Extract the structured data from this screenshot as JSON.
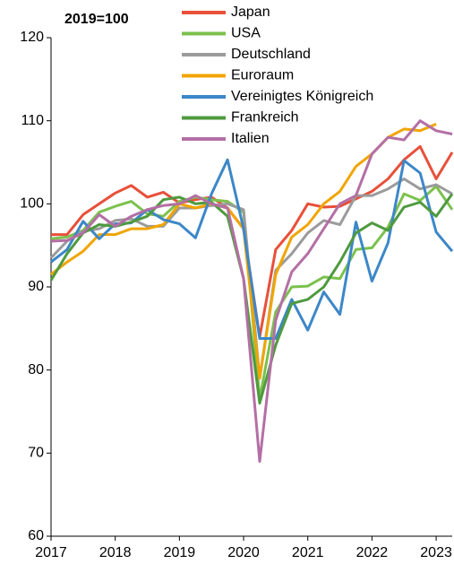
{
  "chart_data": {
    "type": "line",
    "annotation": "2019=100",
    "x": [
      2017,
      2017.25,
      2017.5,
      2017.75,
      2018,
      2018.25,
      2018.5,
      2018.75,
      2019,
      2019.25,
      2019.5,
      2019.75,
      2020,
      2020.25,
      2020.5,
      2020.75,
      2021,
      2021.25,
      2021.5,
      2021.75,
      2022,
      2022.25,
      2022.5,
      2022.75,
      2023,
      2023.25
    ],
    "xlim": [
      2017,
      2023.25
    ],
    "xticks": [
      2017,
      2018,
      2019,
      2020,
      2021,
      2022,
      2023
    ],
    "ylim": [
      60,
      120
    ],
    "yticks": [
      60,
      70,
      80,
      90,
      100,
      110,
      120
    ],
    "series": [
      {
        "name": "Japan",
        "color": "#e8503a",
        "values": [
          96.3,
          96.3,
          98.7,
          100,
          101.3,
          102.2,
          100.8,
          101.4,
          100.1,
          100.5,
          100.8,
          99.5,
          97,
          84,
          94.5,
          96.8,
          100,
          99.6,
          99.7,
          100.6,
          101.5,
          103,
          105.3,
          106.9,
          103,
          106.2
        ]
      },
      {
        "name": "USA",
        "color": "#7bc14d",
        "values": [
          95.8,
          96,
          96.8,
          99,
          99.7,
          100.3,
          98.8,
          98.5,
          100.3,
          100.8,
          100.5,
          100.3,
          99,
          76.5,
          87,
          90,
          90.1,
          91.2,
          91,
          94.5,
          94.7,
          97.2,
          101.2,
          100.4,
          102.1,
          99.3
        ]
      },
      {
        "name": "Deutschland",
        "color": "#9b9b9b",
        "values": [
          93.5,
          95.5,
          96.7,
          97,
          98,
          98.2,
          97.3,
          97.3,
          99.5,
          99.5,
          99.8,
          100,
          99.3,
          79,
          92,
          94,
          96.5,
          98,
          97.5,
          101,
          101,
          101.8,
          103,
          101.8,
          102.3,
          101.2
        ]
      },
      {
        "name": "Euroraum",
        "color": "#f0a500",
        "values": [
          91.5,
          93,
          94.3,
          96.3,
          96.3,
          97,
          97,
          97.5,
          100,
          99.5,
          100,
          99.5,
          97,
          79,
          91.5,
          96,
          97.5,
          100,
          101.5,
          104.5,
          106,
          108,
          109,
          108.8,
          109.6,
          null
        ]
      },
      {
        "name": "Vereinigtes Königreich",
        "color": "#3c87c8",
        "values": [
          93,
          94.5,
          97.9,
          95.8,
          97.6,
          97.7,
          99.3,
          98.1,
          97.6,
          95.9,
          101.2,
          105.3,
          97,
          83.8,
          83.8,
          88.5,
          84.8,
          89.4,
          86.7,
          97.8,
          90.7,
          95.3,
          105.2,
          103.7,
          96.6,
          94.3
        ]
      },
      {
        "name": "Frankreich",
        "color": "#4f9a3f",
        "values": [
          90.8,
          94,
          96.5,
          97.5,
          97.3,
          97.8,
          98.5,
          100.5,
          100.8,
          100,
          100.2,
          98.5,
          91,
          76,
          83,
          88,
          88.5,
          90,
          93,
          96.5,
          97.7,
          96.8,
          99.6,
          100.2,
          98.5,
          101.2
        ]
      },
      {
        "name": "Italien",
        "color": "#b46fa5",
        "values": [
          95.5,
          95.6,
          96.5,
          98.7,
          97.3,
          98.5,
          99.3,
          99.8,
          100,
          101,
          100,
          99.5,
          91,
          69,
          86,
          91.8,
          94,
          97,
          100,
          101,
          106,
          108,
          107.7,
          110,
          108.8,
          108.4
        ]
      }
    ]
  }
}
